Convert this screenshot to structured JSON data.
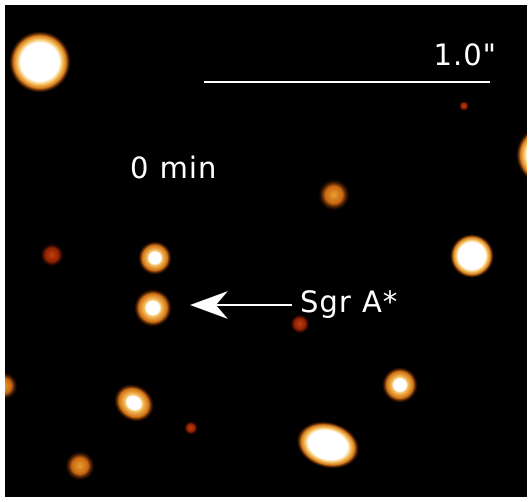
{
  "scale_bar": {
    "label": "1.0\""
  },
  "time_label": "0 min",
  "target_label": "Sgr A*"
}
